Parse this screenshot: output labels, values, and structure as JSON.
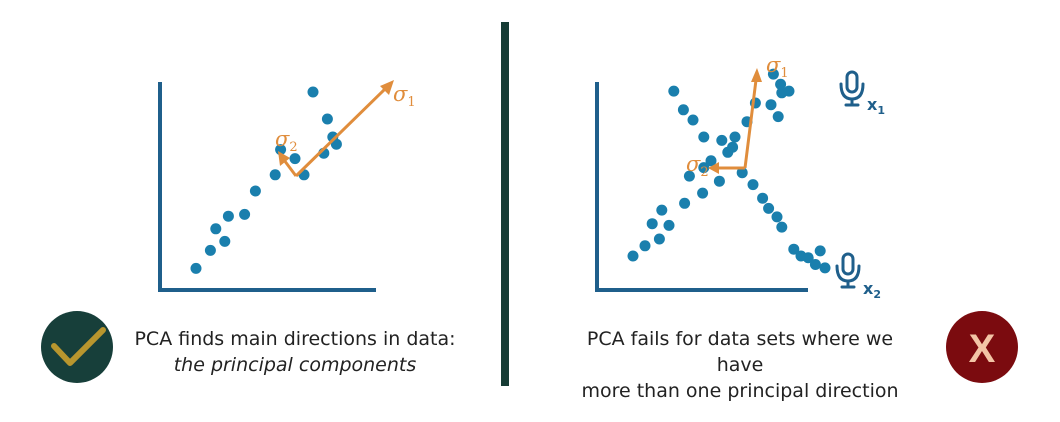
{
  "colors": {
    "point": "#1a7fad",
    "arrow": "#e08d3c",
    "axis": "#1f5f8b",
    "divider": "#163c35",
    "check_badge": "#173f3a",
    "check_mark": "#b8962e",
    "fail_badge": "#7b0b0f",
    "fail_mark": "#f3c5a6",
    "mic": "#1f5f8b"
  },
  "left_panel": {
    "sigma1": "σ",
    "sigma1_sub": "1",
    "sigma2": "σ",
    "sigma2_sub": "2",
    "caption_line1": "PCA finds main directions in data:",
    "caption_line2": "the principal components",
    "badge_icon": "checkmark-icon",
    "points": [
      [
        2.0,
        1.2
      ],
      [
        2.8,
        2.2
      ],
      [
        3.6,
        2.7
      ],
      [
        3.1,
        3.4
      ],
      [
        3.8,
        4.1
      ],
      [
        4.7,
        4.2
      ],
      [
        5.3,
        5.5
      ],
      [
        6.4,
        6.4
      ],
      [
        8.0,
        6.4
      ],
      [
        6.7,
        7.8
      ],
      [
        7.5,
        7.3
      ],
      [
        9.1,
        7.6
      ],
      [
        9.8,
        8.1
      ],
      [
        9.3,
        9.5
      ],
      [
        9.6,
        8.5
      ],
      [
        8.5,
        11.0
      ]
    ],
    "axis_limits": {
      "x": [
        0,
        12
      ],
      "y": [
        0,
        12
      ]
    }
  },
  "right_panel": {
    "sigma1": "σ",
    "sigma1_sub": "1",
    "sigma2": "σ",
    "sigma2_sub": "2",
    "mic1_label": "x",
    "mic1_sub": "1",
    "mic2_label": "x",
    "mic2_sub": "2",
    "caption_line1": "PCA fails for data sets where we have",
    "caption_line2": "more than one principal direction",
    "badge_label": "X",
    "points": [
      [
        3.0,
        2.0
      ],
      [
        4.0,
        2.6
      ],
      [
        5.2,
        3.0
      ],
      [
        4.6,
        3.9
      ],
      [
        5.4,
        4.7
      ],
      [
        6.0,
        3.8
      ],
      [
        7.3,
        5.1
      ],
      [
        7.7,
        6.7
      ],
      [
        8.8,
        5.7
      ],
      [
        8.9,
        7.2
      ],
      [
        9.5,
        7.6
      ],
      [
        10.2,
        6.4
      ],
      [
        10.9,
        8.1
      ],
      [
        11.5,
        9.0
      ],
      [
        12.5,
        9.9
      ],
      [
        13.2,
        11.0
      ],
      [
        14.5,
        10.9
      ],
      [
        15.1,
        10.2
      ],
      [
        15.4,
        11.6
      ],
      [
        14.7,
        12.7
      ],
      [
        15.3,
        12.1
      ],
      [
        16.0,
        11.7
      ],
      [
        6.4,
        11.7
      ],
      [
        7.2,
        10.6
      ],
      [
        8.0,
        10.0
      ],
      [
        8.9,
        9.0
      ],
      [
        10.4,
        8.8
      ],
      [
        11.3,
        8.4
      ],
      [
        12.1,
        6.9
      ],
      [
        13.0,
        6.2
      ],
      [
        13.8,
        5.4
      ],
      [
        14.3,
        4.8
      ],
      [
        15.0,
        4.3
      ],
      [
        15.4,
        3.7
      ],
      [
        16.4,
        2.4
      ],
      [
        17.0,
        2.0
      ],
      [
        17.6,
        1.9
      ],
      [
        18.2,
        1.5
      ],
      [
        18.6,
        2.3
      ],
      [
        19.0,
        1.3
      ]
    ]
  }
}
